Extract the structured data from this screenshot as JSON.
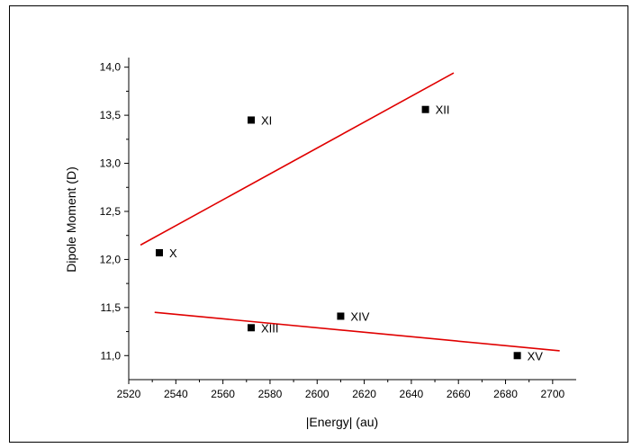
{
  "chart_data": {
    "type": "scatter",
    "xlabel": "|Energy| (au)",
    "ylabel": "Dipole Moment (D)",
    "xlim": [
      2520,
      2710
    ],
    "ylim": [
      10.75,
      14.1
    ],
    "x_ticks": [
      2520,
      2540,
      2560,
      2580,
      2600,
      2620,
      2640,
      2660,
      2680,
      2700
    ],
    "y_ticks": [
      11.0,
      11.5,
      12.0,
      12.5,
      13.0,
      13.5,
      14.0
    ],
    "y_tick_labels": [
      "11,0",
      "11,5",
      "12,0",
      "12,5",
      "13,0",
      "13,5",
      "14,0"
    ],
    "grid": false,
    "series": [
      {
        "points": [
          {
            "label": "X",
            "x": 2533,
            "y": 12.07
          },
          {
            "label": "XI",
            "x": 2572,
            "y": 13.45
          },
          {
            "label": "XII",
            "x": 2646,
            "y": 13.56
          }
        ],
        "fit_line": {
          "x": [
            2525,
            2658
          ],
          "y": [
            12.15,
            13.94
          ]
        }
      },
      {
        "points": [
          {
            "label": "XIII",
            "x": 2572,
            "y": 11.29
          },
          {
            "label": "XIV",
            "x": 2610,
            "y": 11.41
          },
          {
            "label": "XV",
            "x": 2685,
            "y": 11.0
          }
        ],
        "fit_line": {
          "x": [
            2531,
            2703
          ],
          "y": [
            11.45,
            11.05
          ]
        }
      }
    ],
    "colors": {
      "marker": "#000000",
      "fit_line": "#e00000",
      "axis": "#000000"
    }
  }
}
